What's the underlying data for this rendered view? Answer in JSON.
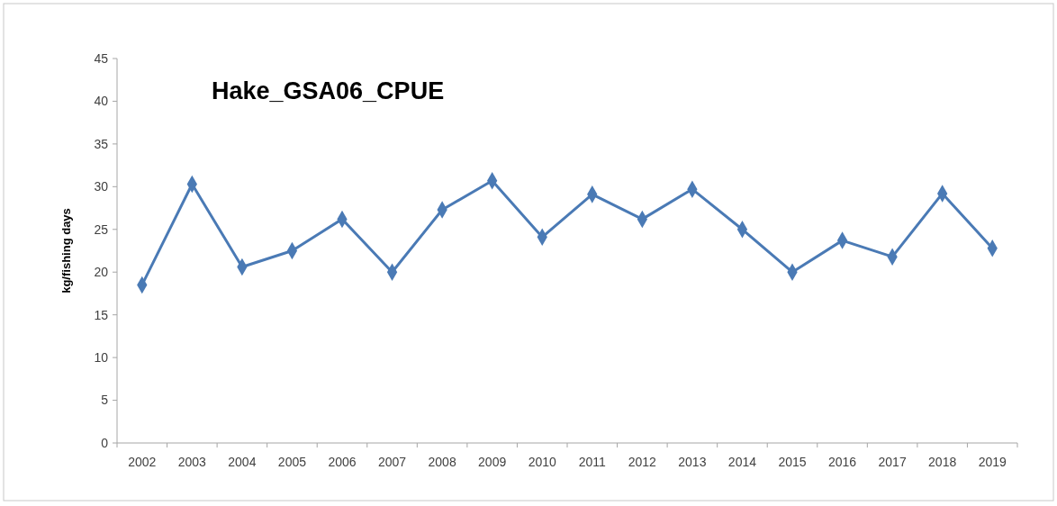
{
  "chart_data": {
    "type": "line",
    "title": "Hake_GSA06_CPUE",
    "ylabel": "kg/fishing days",
    "categories": [
      "2002",
      "2003",
      "2004",
      "2005",
      "2006",
      "2007",
      "2008",
      "2009",
      "2010",
      "2011",
      "2012",
      "2013",
      "2014",
      "2015",
      "2016",
      "2017",
      "2018",
      "2019"
    ],
    "series": [
      {
        "color": "#4a7ab5",
        "values": [
          18.5,
          30.3,
          20.6,
          22.5,
          26.2,
          20.0,
          27.3,
          30.7,
          24.1,
          29.1,
          26.2,
          29.7,
          25.0,
          20.0,
          23.7,
          21.8,
          29.2,
          22.8
        ]
      }
    ],
    "ylim": [
      0,
      45
    ],
    "yticks": [
      0,
      5,
      10,
      15,
      20,
      25,
      30,
      35,
      40,
      45
    ],
    "marker": "diamond",
    "grid": false
  }
}
